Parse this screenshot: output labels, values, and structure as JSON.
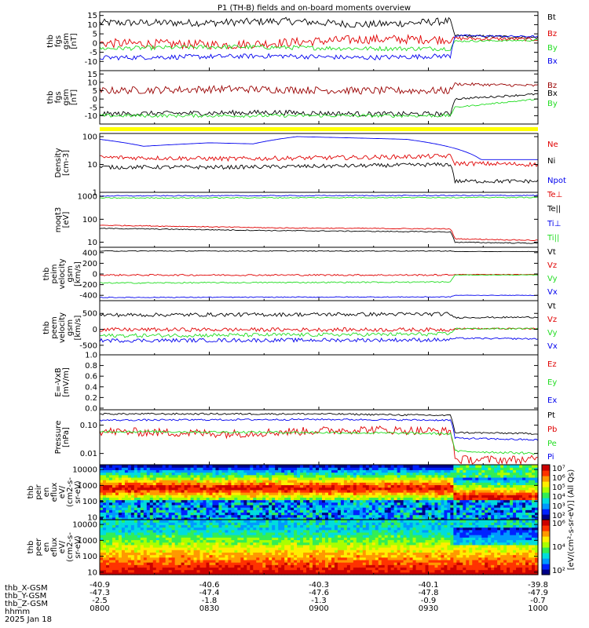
{
  "title": "P1 (TH-B) fields and on-board moments overview",
  "colors": {
    "black": "#000000",
    "red": "#e00000",
    "darkred": "#990000",
    "green": "#22dd22",
    "blue": "#0000ee",
    "yellow": "#ffff00"
  },
  "chart_data": [
    {
      "type": "line",
      "ylabel": [
        "thb",
        "fgs",
        "gsm",
        "[nT]"
      ],
      "ylim": [
        -15,
        17
      ],
      "yticks": [
        -10,
        -5,
        0,
        5,
        10,
        15
      ],
      "series": [
        {
          "name": "Bt",
          "color": "#000000",
          "points": [
            [
              0,
              11
            ],
            [
              0.25,
              11
            ],
            [
              0.42,
              12
            ],
            [
              0.6,
              10
            ],
            [
              0.72,
              11
            ],
            [
              0.8,
              12
            ],
            [
              0.81,
              4
            ],
            [
              1,
              3
            ]
          ],
          "noise": 2.0
        },
        {
          "name": "Bz",
          "color": "#e00000",
          "points": [
            [
              0,
              0
            ],
            [
              0.3,
              -1
            ],
            [
              0.6,
              2
            ],
            [
              0.8,
              2
            ],
            [
              0.81,
              2.5
            ],
            [
              1,
              2
            ]
          ],
          "noise": 2.5
        },
        {
          "name": "By",
          "color": "#22dd22",
          "points": [
            [
              0,
              -3
            ],
            [
              0.3,
              -2
            ],
            [
              0.6,
              -3
            ],
            [
              0.8,
              -3
            ],
            [
              0.81,
              1
            ],
            [
              1,
              1.5
            ]
          ],
          "noise": 1.2
        },
        {
          "name": "Bx",
          "color": "#0000ee",
          "points": [
            [
              0,
              -8
            ],
            [
              0.4,
              -7
            ],
            [
              0.6,
              -8
            ],
            [
              0.8,
              -7
            ],
            [
              0.81,
              4
            ],
            [
              1,
              3.5
            ]
          ],
          "noise": 1.3
        }
      ]
    },
    {
      "type": "line",
      "ylabel": [
        "thb",
        "fgs",
        "gsm",
        "[nT]"
      ],
      "ylim": [
        -15,
        17
      ],
      "yticks": [
        -10,
        -5,
        0,
        5,
        10,
        15
      ],
      "series": [
        {
          "name": "Bz",
          "color": "#990000",
          "points": [
            [
              0,
              5
            ],
            [
              0.3,
              6
            ],
            [
              0.6,
              5
            ],
            [
              0.8,
              5
            ],
            [
              0.81,
              9
            ],
            [
              1,
              8
            ]
          ],
          "noise": 2.2
        },
        {
          "name": "Bx",
          "color": "#000000",
          "points": [
            [
              0,
              -9
            ],
            [
              0.4,
              -8
            ],
            [
              0.6,
              -9
            ],
            [
              0.8,
              -9
            ],
            [
              0.81,
              0
            ],
            [
              1,
              3
            ]
          ],
          "noise": 1.5
        },
        {
          "name": "By",
          "color": "#22dd22",
          "points": [
            [
              0,
              -10
            ],
            [
              0.4,
              -10
            ],
            [
              0.6,
              -10
            ],
            [
              0.8,
              -10
            ],
            [
              0.81,
              -5
            ],
            [
              1,
              0
            ]
          ],
          "noise": 1.0
        }
      ]
    },
    {
      "type": "line",
      "ylabel": [
        "Density",
        "[cm-3]"
      ],
      "scale": "log",
      "ylim": [
        1,
        130
      ],
      "yticks": [
        1,
        10,
        100
      ],
      "ytick_labels": [
        "1",
        "10",
        "100"
      ],
      "series": [
        {
          "name": "Ne",
          "color": "#e00000",
          "points": [
            [
              0,
              18
            ],
            [
              0.3,
              16
            ],
            [
              0.6,
              18
            ],
            [
              0.8,
              20
            ],
            [
              0.81,
              11
            ],
            [
              1,
              10
            ]
          ],
          "noise": 0.08
        },
        {
          "name": "Ni",
          "color": "#000000",
          "points": [
            [
              0,
              8
            ],
            [
              0.3,
              8
            ],
            [
              0.6,
              9
            ],
            [
              0.8,
              10
            ],
            [
              0.81,
              2.5
            ],
            [
              1,
              2.5
            ]
          ],
          "noise": 0.07
        },
        {
          "name": "Npot",
          "color": "#0000ee",
          "points": [
            [
              0,
              80
            ],
            [
              0.1,
              45
            ],
            [
              0.25,
              60
            ],
            [
              0.35,
              55
            ],
            [
              0.45,
              100
            ],
            [
              0.7,
              80
            ],
            [
              0.87,
              15
            ],
            [
              1,
              15
            ]
          ],
          "noise": 0
        }
      ]
    },
    {
      "type": "line",
      "ylabel": [
        "moqt3",
        "[eV]"
      ],
      "scale": "log",
      "ylim": [
        6,
        1500
      ],
      "yticks": [
        10,
        100,
        1000
      ],
      "ytick_labels": [
        "10",
        "100",
        "1000"
      ],
      "series": [
        {
          "name": "Te⊥",
          "color": "#e00000",
          "points": [
            [
              0,
              55
            ],
            [
              0.4,
              42
            ],
            [
              0.8,
              38
            ],
            [
              0.81,
              14
            ],
            [
              1,
              12
            ]
          ],
          "noise": 0.02
        },
        {
          "name": "Te||",
          "color": "#000000",
          "points": [
            [
              0,
              40
            ],
            [
              0.4,
              32
            ],
            [
              0.8,
              28
            ],
            [
              0.81,
              10
            ],
            [
              1,
              9
            ]
          ],
          "noise": 0.02
        },
        {
          "name": "Ti⊥",
          "color": "#0000ee",
          "points": [
            [
              0,
              1050
            ],
            [
              1,
              1100
            ]
          ],
          "noise": 0.02
        },
        {
          "name": "Ti||",
          "color": "#22dd22",
          "points": [
            [
              0,
              850
            ],
            [
              1,
              900
            ]
          ],
          "noise": 0.02
        }
      ]
    },
    {
      "type": "line",
      "ylabel": [
        "thb",
        "peim",
        "velocity",
        "gsm",
        "[km/s]"
      ],
      "ylim": [
        -500,
        500
      ],
      "yticks": [
        -400,
        -200,
        0,
        200,
        400
      ],
      "series": [
        {
          "name": "Vt",
          "color": "#000000",
          "points": [
            [
              0,
              430
            ],
            [
              0.8,
              430
            ],
            [
              0.81,
              420
            ],
            [
              1,
              420
            ]
          ],
          "noise": 8
        },
        {
          "name": "Vz",
          "color": "#e00000",
          "points": [
            [
              0,
              -20
            ],
            [
              0.8,
              -20
            ],
            [
              0.81,
              -10
            ],
            [
              1,
              -10
            ]
          ],
          "noise": 15
        },
        {
          "name": "Vy",
          "color": "#22dd22",
          "points": [
            [
              0,
              -170
            ],
            [
              0.8,
              -150
            ],
            [
              0.81,
              -20
            ],
            [
              1,
              -20
            ]
          ],
          "noise": 12
        },
        {
          "name": "Vx",
          "color": "#0000ee",
          "points": [
            [
              0,
              -440
            ],
            [
              0.8,
              -430
            ],
            [
              0.81,
              -400
            ],
            [
              1,
              -400
            ]
          ],
          "noise": 8
        }
      ]
    },
    {
      "type": "line",
      "ylabel": [
        "thb",
        "peem",
        "velocity",
        "gsm",
        "[km/s]"
      ],
      "ylim": [
        -800,
        900
      ],
      "yticks": [
        -500,
        0,
        500
      ],
      "series": [
        {
          "name": "Vt",
          "color": "#000000",
          "points": [
            [
              0,
              450
            ],
            [
              0.8,
              480
            ],
            [
              0.81,
              370
            ],
            [
              1,
              380
            ]
          ],
          "noise": 60
        },
        {
          "name": "Vz",
          "color": "#e00000",
          "points": [
            [
              0,
              -10
            ],
            [
              0.8,
              -10
            ],
            [
              0.81,
              20
            ],
            [
              1,
              20
            ]
          ],
          "noise": 60
        },
        {
          "name": "Vy",
          "color": "#22dd22",
          "points": [
            [
              0,
              -200
            ],
            [
              0.8,
              -150
            ],
            [
              0.81,
              20
            ],
            [
              1,
              20
            ]
          ],
          "noise": 60
        },
        {
          "name": "Vx",
          "color": "#0000ee",
          "points": [
            [
              0,
              -350
            ],
            [
              0.8,
              -330
            ],
            [
              0.81,
              -280
            ],
            [
              1,
              -300
            ]
          ],
          "noise": 60
        }
      ]
    },
    {
      "type": "line",
      "ylabel": [
        "E=-VxB",
        "[mV/m]"
      ],
      "ylim": [
        -0.03,
        1.0
      ],
      "yticks": [
        0.0,
        0.2,
        0.4,
        0.6,
        0.8,
        1.0
      ],
      "ytick_labels": [
        "0.0",
        "0.2",
        "0.4",
        "0.6",
        "0.8",
        "1.0"
      ],
      "series": [
        {
          "name": "Ez",
          "color": "#e00000",
          "points": [],
          "noise": 0
        },
        {
          "name": "Ey",
          "color": "#22dd22",
          "points": [],
          "noise": 0
        },
        {
          "name": "Ex",
          "color": "#0000ee",
          "points": [],
          "noise": 0
        }
      ]
    },
    {
      "type": "line",
      "ylabel": [
        "Pressure",
        "[nPa]"
      ],
      "scale": "log",
      "ylim": [
        0.004,
        0.35
      ],
      "yticks": [
        0.01,
        0.1
      ],
      "ytick_labels": [
        "0.01",
        "0.10"
      ],
      "series": [
        {
          "name": "Pt",
          "color": "#000000",
          "points": [
            [
              0,
              0.25
            ],
            [
              0.5,
              0.25
            ],
            [
              0.8,
              0.22
            ],
            [
              0.81,
              0.055
            ],
            [
              1,
              0.05
            ]
          ],
          "noise": 0.03
        },
        {
          "name": "Pb",
          "color": "#e00000",
          "points": [
            [
              0,
              0.06
            ],
            [
              0.3,
              0.05
            ],
            [
              0.6,
              0.07
            ],
            [
              0.8,
              0.06
            ],
            [
              0.81,
              0.006
            ],
            [
              1,
              0.006
            ]
          ],
          "noise": 0.15
        },
        {
          "name": "Pe",
          "color": "#22dd22",
          "points": [
            [
              0,
              0.06
            ],
            [
              0.5,
              0.055
            ],
            [
              0.8,
              0.05
            ],
            [
              0.81,
              0.012
            ],
            [
              1,
              0.01
            ]
          ],
          "noise": 0.04
        },
        {
          "name": "Pi",
          "color": "#0000ee",
          "points": [
            [
              0,
              0.15
            ],
            [
              0.5,
              0.16
            ],
            [
              0.8,
              0.15
            ],
            [
              0.81,
              0.035
            ],
            [
              1,
              0.03
            ]
          ],
          "noise": 0.03
        }
      ]
    },
    {
      "type": "heatmap",
      "ylabel": [
        "thb",
        "peir",
        "en",
        "eflux",
        "eV/",
        "(cm2-s-",
        "sr-eV)"
      ],
      "scale": "log",
      "ylim": [
        7,
        20000
      ],
      "yticks": [
        10,
        100,
        1000,
        10000
      ],
      "ytick_labels": [
        "10",
        "100",
        "1000",
        "10000"
      ],
      "colorbar": {
        "ticks": [
          "10²",
          "10³",
          "10⁴",
          "10⁵",
          "10⁶",
          "10⁷"
        ]
      }
    },
    {
      "type": "heatmap",
      "ylabel": [
        "thb",
        "peer",
        "en",
        "eflux",
        "eV/",
        "(cm2-s-",
        "sr-eV)"
      ],
      "scale": "log",
      "ylim": [
        7,
        20000
      ],
      "yticks": [
        10,
        100,
        1000,
        10000
      ],
      "ytick_labels": [
        "10",
        "100",
        "1000",
        "10000"
      ],
      "colorbar": {
        "ticks": [
          "10²",
          "10⁴",
          "10⁶"
        ]
      }
    }
  ],
  "colorbar_label": "[eV/(cm²-s-sr-eV)] (All Qs)",
  "x_axis": {
    "tick_count": 6,
    "row_labels": [
      "thb_X-GSM",
      "thb_Y-GSM",
      "thb_Z-GSM",
      "hhmm",
      "2025 Jan 18"
    ],
    "columns": [
      {
        "x": "-40.9",
        "y": "-47.3",
        "z": "-2.5",
        "t": "0800"
      },
      {
        "x": "-40.6",
        "y": "-47.4",
        "z": "-1.8",
        "t": "0830"
      },
      {
        "x": "-40.3",
        "y": "-47.6",
        "z": "-1.3",
        "t": "0900"
      },
      {
        "x": "-40.1",
        "y": "-47.8",
        "z": "-0.9",
        "t": "0930"
      },
      {
        "x": "-39.8",
        "y": "-47.9",
        "z": "-0.7",
        "t": "1000"
      }
    ]
  }
}
